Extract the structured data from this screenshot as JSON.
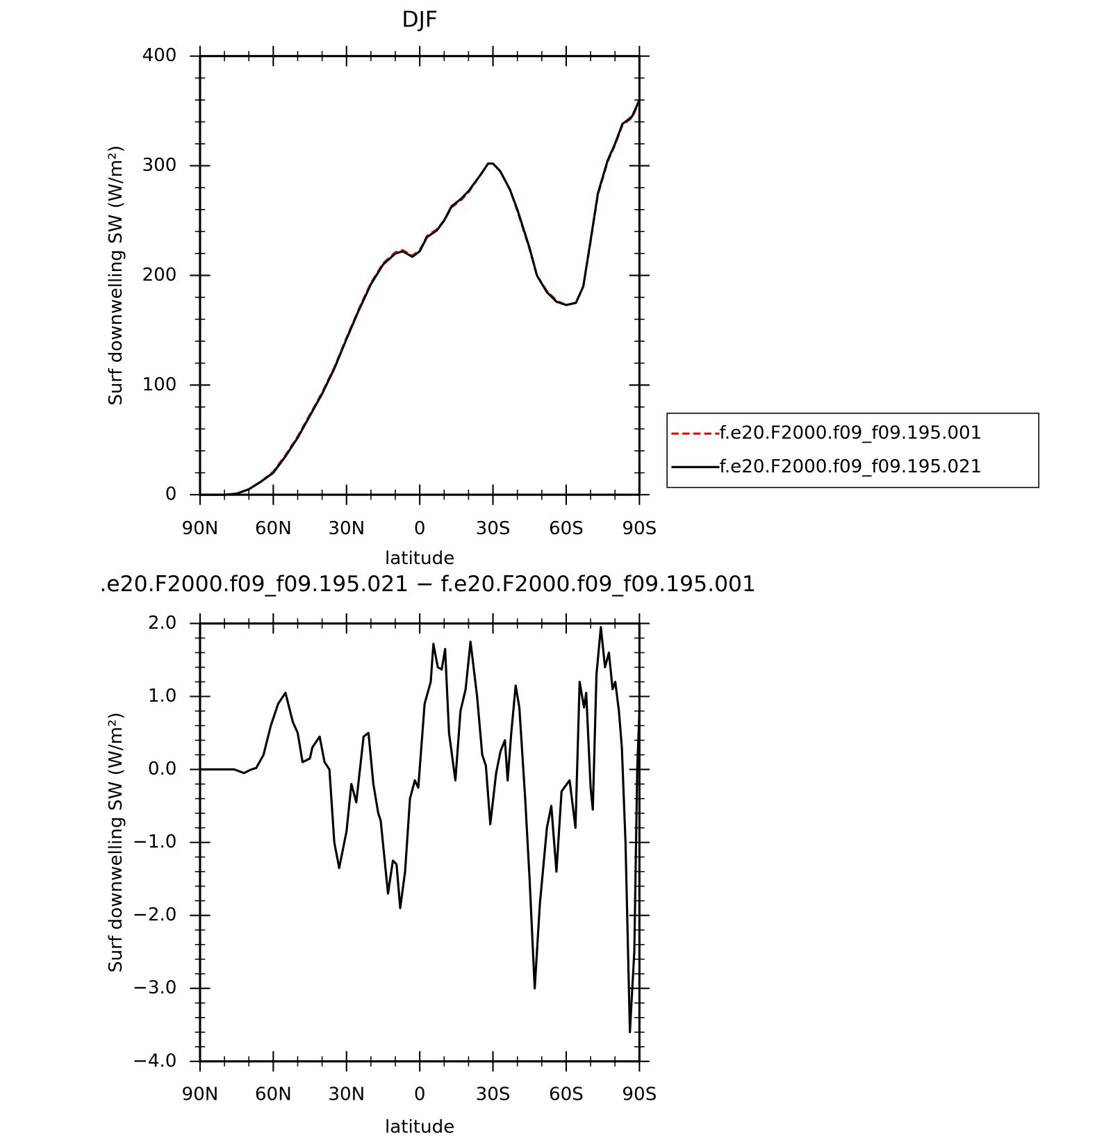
{
  "chart_data": [
    {
      "type": "line",
      "title": "DJF",
      "xlabel": "latitude",
      "ylabel": "Surf downwelling SW (W/m²)",
      "xlim": [
        90,
        -90
      ],
      "xticks": [
        {
          "value": 90,
          "label": "90N"
        },
        {
          "value": 60,
          "label": "60N"
        },
        {
          "value": 30,
          "label": "30N"
        },
        {
          "value": 0,
          "label": "0"
        },
        {
          "value": -30,
          "label": "30S"
        },
        {
          "value": -60,
          "label": "60S"
        },
        {
          "value": -90,
          "label": "90S"
        }
      ],
      "ylim": [
        0,
        400
      ],
      "yticks": [
        0,
        100,
        200,
        300,
        400
      ],
      "legend": "right",
      "x": [
        90,
        80,
        75,
        70,
        65,
        60,
        55,
        50,
        45,
        40,
        35,
        30,
        25,
        20,
        15,
        10,
        7,
        3,
        0,
        -3,
        -7,
        -10,
        -13,
        -17,
        -20,
        -25,
        -28,
        -30,
        -33,
        -37,
        -40,
        -45,
        -48,
        -52,
        -56,
        -60,
        -64,
        -67,
        -70,
        -73,
        -77,
        -80,
        -83,
        -87,
        -90
      ],
      "series": [
        {
          "name": "f.e20.F2000.f09_f09.195.001",
          "color": "#ff0000",
          "dash": true,
          "values": [
            0,
            0,
            1,
            5,
            12,
            21,
            36,
            53,
            73,
            93,
            116,
            143,
            169,
            193,
            211,
            221,
            223,
            218,
            223,
            236,
            242,
            250,
            262,
            269,
            276,
            292,
            302,
            302,
            295,
            278,
            259,
            224,
            200,
            186,
            177,
            173,
            175,
            190,
            231,
            274,
            304,
            319,
            337,
            344,
            359
          ]
        },
        {
          "name": "f.e20.F2000.f09_f09.195.021",
          "color": "#000000",
          "dash": false,
          "values": [
            0,
            0,
            1,
            5,
            12,
            20,
            35,
            52,
            72,
            92,
            115,
            142,
            168,
            192,
            210,
            220,
            222,
            217,
            222,
            235,
            241,
            250,
            263,
            270,
            277,
            292,
            302,
            302,
            295,
            278,
            260,
            225,
            200,
            185,
            176,
            173,
            175,
            190,
            232,
            275,
            305,
            320,
            338,
            345,
            360
          ]
        }
      ]
    },
    {
      "type": "line",
      "title": ".e20.F2000.f09_f09.195.021 − f.e20.F2000.f09_f09.195.001",
      "xlabel": "latitude",
      "ylabel": "Surf downwelling SW (W/m²)",
      "xlim": [
        90,
        -90
      ],
      "xticks": [
        {
          "value": 90,
          "label": "90N"
        },
        {
          "value": 60,
          "label": "60N"
        },
        {
          "value": 30,
          "label": "30N"
        },
        {
          "value": 0,
          "label": "0"
        },
        {
          "value": -30,
          "label": "30S"
        },
        {
          "value": -60,
          "label": "60S"
        },
        {
          "value": -90,
          "label": "90S"
        }
      ],
      "ylim": [
        -4,
        2
      ],
      "yticks": [
        {
          "value": -4,
          "label": "−4.0"
        },
        {
          "value": -3,
          "label": "−3.0"
        },
        {
          "value": -2,
          "label": "−2.0"
        },
        {
          "value": -1,
          "label": "−1.0"
        },
        {
          "value": 0,
          "label": "0.0"
        },
        {
          "value": 1,
          "label": "1.0"
        },
        {
          "value": 2,
          "label": "2.0"
        }
      ],
      "x": [
        90,
        76,
        72,
        69,
        67,
        64,
        61,
        58,
        55,
        52,
        50,
        48,
        45,
        44,
        41,
        39,
        37,
        35,
        33,
        30,
        28,
        26,
        23,
        21,
        19,
        17,
        16,
        13,
        11,
        9.5,
        8,
        6,
        4,
        2,
        0.6,
        -2,
        -4.5,
        -5.6,
        -7.4,
        -9,
        -10.4,
        -12,
        -14.6,
        -16.7,
        -18.8,
        -20.8,
        -23.5,
        -25.6,
        -27.1,
        -28.9,
        -31.3,
        -33.1,
        -34.9,
        -36,
        -37.5,
        -39.3,
        -40.8,
        -43.2,
        -45,
        -47.1,
        -49.2,
        -52.1,
        -53.9,
        -56,
        -58.1,
        -61.4,
        -63.8,
        -65.5,
        -67.3,
        -68.2,
        -70,
        -70.9,
        -72.4,
        -74.2,
        -75.9,
        -77.5,
        -79,
        -80.1,
        -81.6,
        -82.8,
        -84.3,
        -86.1,
        -87.9,
        -89.1,
        -90
      ],
      "series": [
        {
          "color": "#000000",
          "dash": false,
          "values": [
            0,
            0,
            -0.05,
            0,
            0.02,
            0.2,
            0.6,
            0.9,
            1.05,
            0.65,
            0.5,
            0.1,
            0.15,
            0.3,
            0.45,
            0.1,
            0,
            -1.0,
            -1.35,
            -0.85,
            -0.2,
            -0.45,
            0.45,
            0.5,
            -0.2,
            -0.6,
            -0.7,
            -1.7,
            -1.25,
            -1.3,
            -1.9,
            -1.4,
            -0.4,
            -0.15,
            -0.25,
            0.9,
            1.2,
            1.72,
            1.4,
            1.37,
            1.65,
            0.5,
            -0.15,
            0.8,
            1.1,
            1.75,
            1.0,
            0.2,
            0.05,
            -0.75,
            -0.05,
            0.25,
            0.4,
            -0.15,
            0.5,
            1.15,
            0.85,
            -0.4,
            -1.5,
            -3.0,
            -1.85,
            -0.8,
            -0.5,
            -1.4,
            -0.3,
            -0.15,
            -0.8,
            1.2,
            0.85,
            1.05,
            -0.25,
            -0.55,
            1.3,
            1.95,
            1.4,
            1.6,
            1.1,
            1.2,
            0.8,
            0.3,
            -1.0,
            -3.6,
            -2.5,
            0,
            0.8
          ]
        }
      ]
    }
  ]
}
